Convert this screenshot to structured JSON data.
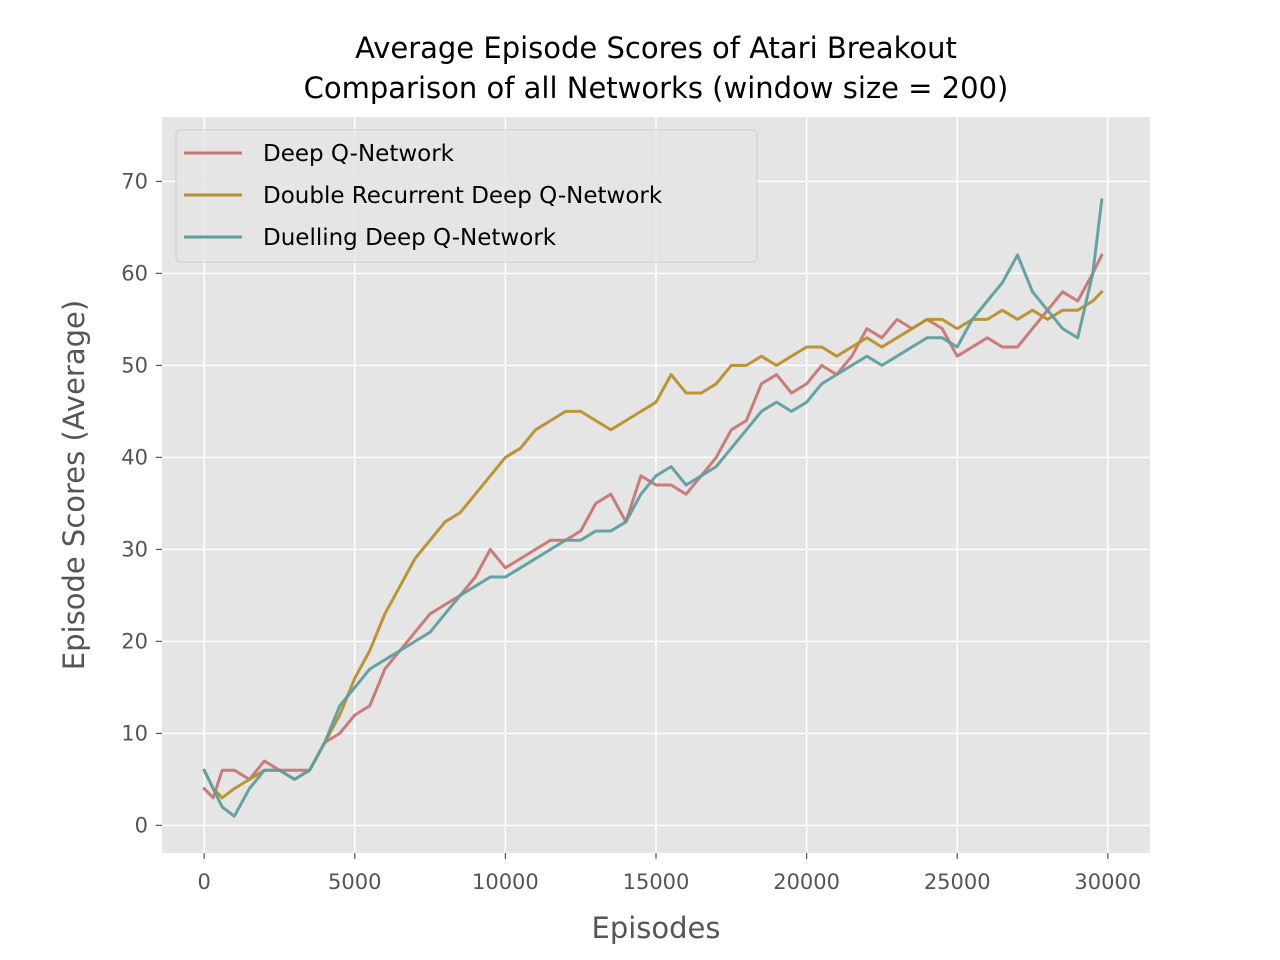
{
  "chart_data": {
    "type": "line",
    "title_line1": "Average Episode Scores of Atari Breakout",
    "title_line2": "Comparison of all Networks (window size = 200)",
    "xlabel": "Episodes",
    "ylabel": "Episode Scores (Average)",
    "xlim": [
      -1400,
      31400
    ],
    "ylim": [
      -3,
      77
    ],
    "xticks": [
      0,
      5000,
      10000,
      15000,
      20000,
      25000,
      30000
    ],
    "yticks": [
      0,
      10,
      20,
      30,
      40,
      50,
      60,
      70
    ],
    "grid": true,
    "legend_position": "top-left",
    "series": [
      {
        "name": "Deep Q-Network",
        "color": "#c77672",
        "x": [
          0,
          300,
          600,
          1000,
          1500,
          2000,
          2500,
          3000,
          3500,
          4000,
          4500,
          5000,
          5500,
          6000,
          6500,
          7000,
          7500,
          8000,
          8500,
          9000,
          9500,
          10000,
          10500,
          11000,
          11500,
          12000,
          12500,
          13000,
          13500,
          14000,
          14500,
          15000,
          15500,
          16000,
          16500,
          17000,
          17500,
          18000,
          18500,
          19000,
          19500,
          20000,
          20500,
          21000,
          21500,
          22000,
          22500,
          23000,
          23500,
          24000,
          24500,
          25000,
          25500,
          26000,
          26500,
          27000,
          27500,
          28000,
          28500,
          29000,
          29500,
          29800
        ],
        "y": [
          4,
          3,
          6,
          6,
          5,
          7,
          6,
          6,
          6,
          9,
          10,
          12,
          13,
          17,
          19,
          21,
          23,
          24,
          25,
          27,
          30,
          28,
          29,
          30,
          31,
          31,
          32,
          35,
          36,
          33,
          38,
          37,
          37,
          36,
          38,
          40,
          43,
          44,
          48,
          49,
          47,
          48,
          50,
          49,
          51,
          54,
          53,
          55,
          54,
          55,
          54,
          51,
          52,
          53,
          52,
          52,
          54,
          56,
          58,
          57,
          60,
          62
        ]
      },
      {
        "name": "Double Recurrent Deep Q-Network",
        "color": "#b8902a",
        "x": [
          0,
          300,
          600,
          1000,
          1500,
          2000,
          2500,
          3000,
          3500,
          4000,
          4500,
          5000,
          5500,
          6000,
          6500,
          7000,
          7500,
          8000,
          8500,
          9000,
          9500,
          10000,
          10500,
          11000,
          11500,
          12000,
          12500,
          13000,
          13500,
          14000,
          14500,
          15000,
          15500,
          16000,
          16500,
          17000,
          17500,
          18000,
          18500,
          19000,
          19500,
          20000,
          20500,
          21000,
          21500,
          22000,
          22500,
          23000,
          23500,
          24000,
          24500,
          25000,
          25500,
          26000,
          26500,
          27000,
          27500,
          28000,
          28500,
          29000,
          29500,
          29800
        ],
        "y": [
          6,
          4,
          3,
          4,
          5,
          6,
          6,
          5,
          6,
          9,
          12,
          16,
          19,
          23,
          26,
          29,
          31,
          33,
          34,
          36,
          38,
          40,
          41,
          43,
          44,
          45,
          45,
          44,
          43,
          44,
          45,
          46,
          49,
          47,
          47,
          48,
          50,
          50,
          51,
          50,
          51,
          52,
          52,
          51,
          52,
          53,
          52,
          53,
          54,
          55,
          55,
          54,
          55,
          55,
          56,
          55,
          56,
          55,
          56,
          56,
          57,
          58
        ]
      },
      {
        "name": "Duelling Deep Q-Network",
        "color": "#5f9ea0",
        "x": [
          0,
          300,
          600,
          1000,
          1500,
          2000,
          2500,
          3000,
          3500,
          4000,
          4500,
          5000,
          5500,
          6000,
          6500,
          7000,
          7500,
          8000,
          8500,
          9000,
          9500,
          10000,
          10500,
          11000,
          11500,
          12000,
          12500,
          13000,
          13500,
          14000,
          14500,
          15000,
          15500,
          16000,
          16500,
          17000,
          17500,
          18000,
          18500,
          19000,
          19500,
          20000,
          20500,
          21000,
          21500,
          22000,
          22500,
          23000,
          23500,
          24000,
          24500,
          25000,
          25500,
          26000,
          26500,
          27000,
          27500,
          28000,
          28500,
          29000,
          29500,
          29800
        ],
        "y": [
          6,
          4,
          2,
          1,
          4,
          6,
          6,
          5,
          6,
          9,
          13,
          15,
          17,
          18,
          19,
          20,
          21,
          23,
          25,
          26,
          27,
          27,
          28,
          29,
          30,
          31,
          31,
          32,
          32,
          33,
          36,
          38,
          39,
          37,
          38,
          39,
          41,
          43,
          45,
          46,
          45,
          46,
          48,
          49,
          50,
          51,
          50,
          51,
          52,
          53,
          53,
          52,
          55,
          57,
          59,
          62,
          58,
          56,
          54,
          53,
          60,
          68
        ]
      }
    ]
  }
}
